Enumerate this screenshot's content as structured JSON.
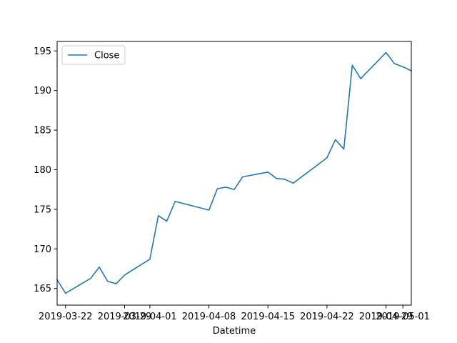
{
  "chart_data": {
    "type": "line",
    "title": "",
    "xlabel": "Datetime",
    "ylabel": "",
    "x_ticks": [
      "2019-03-22",
      "2019-03-29",
      "2019-04-01",
      "2019-04-08",
      "2019-04-15",
      "2019-04-22",
      "2019-04-29",
      "2019-05-01"
    ],
    "y_ticks": [
      165,
      170,
      175,
      180,
      185,
      190,
      195
    ],
    "xlim": [
      "2019-03-21",
      "2019-05-02"
    ],
    "ylim": [
      162.9,
      196.2
    ],
    "grid": false,
    "legend": "upper-left",
    "series": [
      {
        "name": "Close",
        "color": "#1f77b4",
        "points": [
          [
            "2019-03-21",
            166.1
          ],
          [
            "2019-03-22",
            164.4
          ],
          [
            "2019-03-25",
            166.3
          ],
          [
            "2019-03-26",
            167.7
          ],
          [
            "2019-03-27",
            165.9
          ],
          [
            "2019-03-28",
            165.6
          ],
          [
            "2019-03-29",
            166.7
          ],
          [
            "2019-04-01",
            168.7
          ],
          [
            "2019-04-02",
            174.2
          ],
          [
            "2019-04-03",
            173.5
          ],
          [
            "2019-04-04",
            176.0
          ],
          [
            "2019-04-08",
            174.9
          ],
          [
            "2019-04-09",
            177.6
          ],
          [
            "2019-04-10",
            177.8
          ],
          [
            "2019-04-11",
            177.5
          ],
          [
            "2019-04-12",
            179.1
          ],
          [
            "2019-04-15",
            179.7
          ],
          [
            "2019-04-16",
            178.9
          ],
          [
            "2019-04-17",
            178.8
          ],
          [
            "2019-04-18",
            178.3
          ],
          [
            "2019-04-22",
            181.5
          ],
          [
            "2019-04-23",
            183.8
          ],
          [
            "2019-04-24",
            182.6
          ],
          [
            "2019-04-25",
            193.2
          ],
          [
            "2019-04-26",
            191.5
          ],
          [
            "2019-04-29",
            194.8
          ],
          [
            "2019-04-30",
            193.4
          ],
          [
            "2019-05-01",
            193.0
          ],
          [
            "2019-05-02",
            192.5
          ]
        ]
      }
    ]
  }
}
